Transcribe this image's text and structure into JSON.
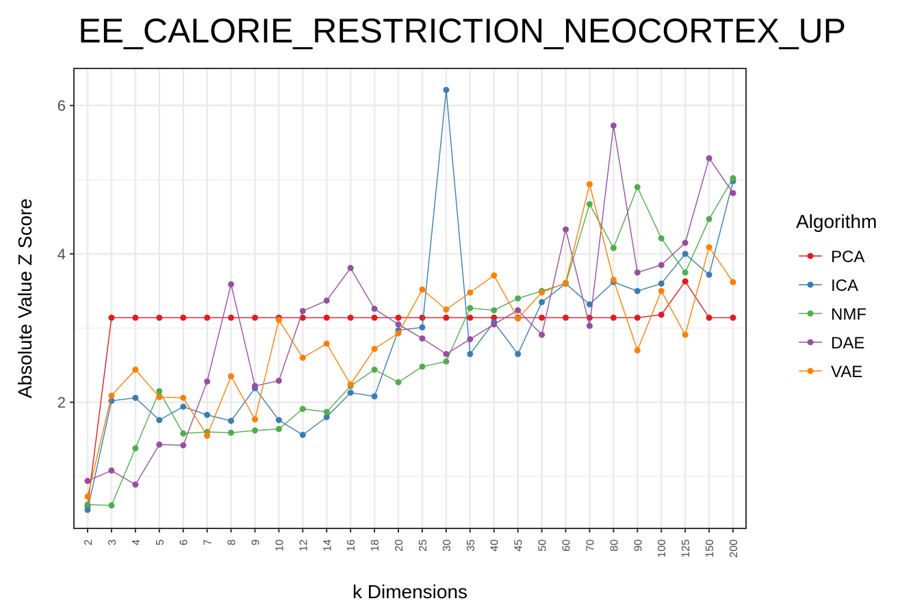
{
  "chart_data": {
    "type": "line",
    "title": "EE_CALORIE_RESTRICTION_NEOCORTEX_UP",
    "xlabel": "k Dimensions",
    "ylabel": "Absolute Value Z Score",
    "categories": [
      "2",
      "3",
      "4",
      "5",
      "6",
      "7",
      "8",
      "9",
      "10",
      "12",
      "14",
      "16",
      "18",
      "20",
      "25",
      "30",
      "35",
      "40",
      "45",
      "50",
      "60",
      "70",
      "80",
      "90",
      "100",
      "125",
      "150",
      "200"
    ],
    "ylim": [
      0.3,
      6.5
    ],
    "yticks": [
      2,
      4,
      6
    ],
    "grid": true,
    "legend": {
      "title": "Algorithm",
      "position": "right"
    },
    "series": [
      {
        "name": "PCA",
        "color": "#e41a1c",
        "values": [
          0.6,
          3.14,
          3.14,
          3.14,
          3.14,
          3.14,
          3.14,
          3.14,
          3.14,
          3.14,
          3.14,
          3.14,
          3.14,
          3.14,
          3.14,
          3.14,
          3.14,
          3.14,
          3.14,
          3.14,
          3.14,
          3.14,
          3.14,
          3.14,
          3.18,
          3.63,
          3.14,
          3.14
        ]
      },
      {
        "name": "ICA",
        "color": "#377eb8",
        "values": [
          0.55,
          2.02,
          2.06,
          1.76,
          1.94,
          1.83,
          1.75,
          2.19,
          1.76,
          1.56,
          1.8,
          2.13,
          2.08,
          2.97,
          3.01,
          6.21,
          2.65,
          3.08,
          2.65,
          3.35,
          3.6,
          3.32,
          3.62,
          3.5,
          3.6,
          4.0,
          3.72,
          4.98
        ]
      },
      {
        "name": "NMF",
        "color": "#4daf4a",
        "values": [
          0.62,
          0.61,
          1.38,
          2.15,
          1.58,
          1.6,
          1.59,
          1.62,
          1.64,
          1.91,
          1.87,
          2.22,
          2.44,
          2.27,
          2.48,
          2.55,
          3.27,
          3.24,
          3.4,
          3.5,
          3.6,
          4.67,
          4.08,
          4.9,
          4.21,
          3.75,
          4.47,
          5.02
        ]
      },
      {
        "name": "DAE",
        "color": "#984ea3",
        "values": [
          0.94,
          1.08,
          0.89,
          1.43,
          1.42,
          2.28,
          3.59,
          2.22,
          2.29,
          3.23,
          3.37,
          3.81,
          3.26,
          3.05,
          2.86,
          2.65,
          2.85,
          3.05,
          3.24,
          2.91,
          4.33,
          3.03,
          5.73,
          3.75,
          3.85,
          4.15,
          5.29,
          4.82
        ]
      },
      {
        "name": "VAE",
        "color": "#ff7f00",
        "values": [
          0.73,
          2.09,
          2.44,
          2.07,
          2.06,
          1.55,
          2.35,
          1.77,
          3.11,
          2.6,
          2.79,
          2.24,
          2.72,
          2.93,
          3.52,
          3.25,
          3.48,
          3.71,
          3.13,
          3.48,
          3.61,
          4.94,
          3.65,
          2.7,
          3.5,
          2.91,
          4.09,
          3.62
        ]
      }
    ]
  }
}
